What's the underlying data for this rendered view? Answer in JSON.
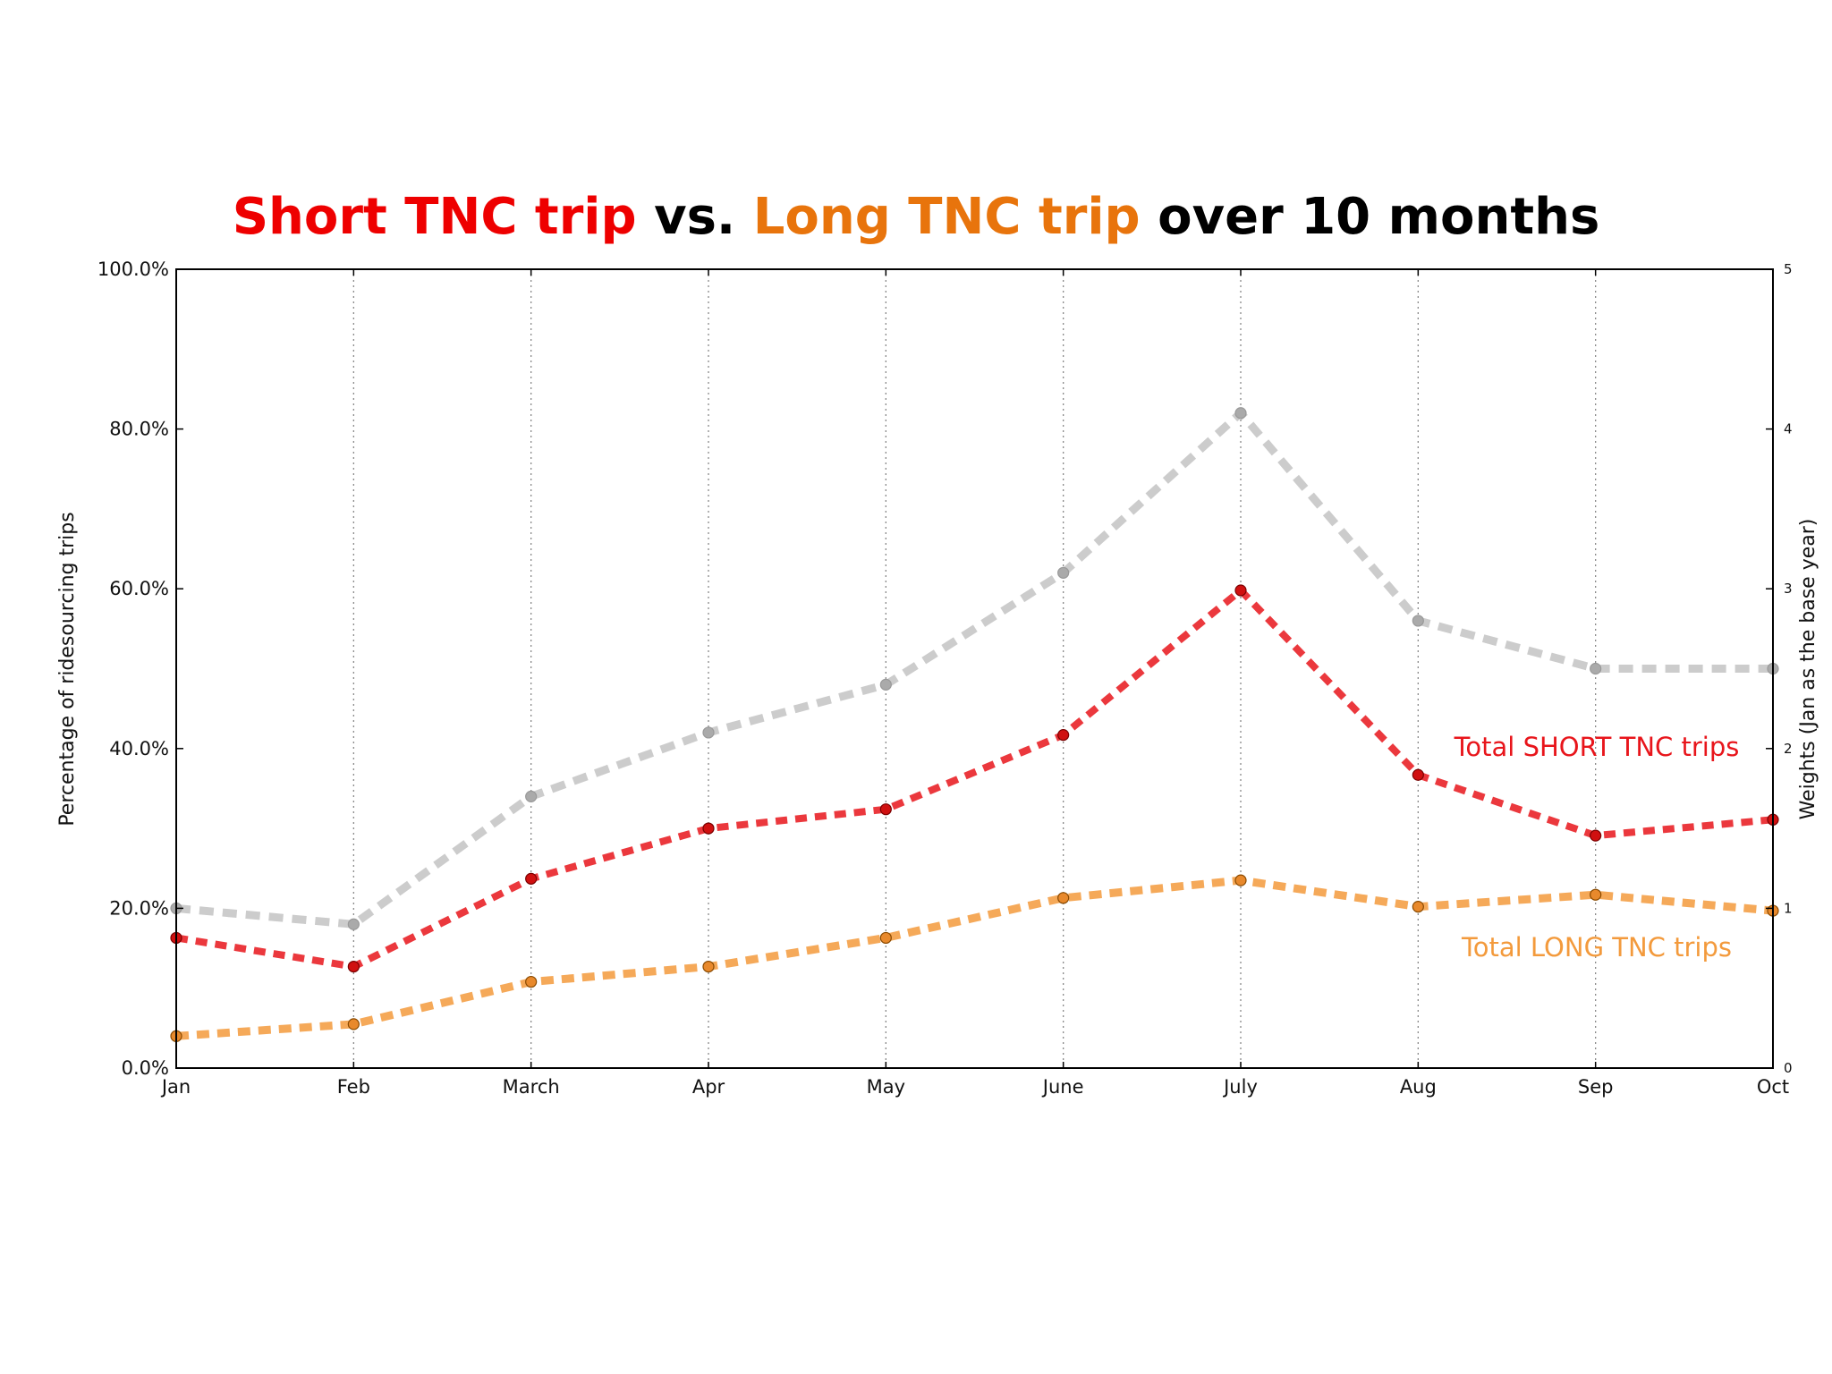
{
  "colors": {
    "short": "#e8151b",
    "long": "#f39a3c",
    "total": "#cccccc",
    "title_short": "#ee0000",
    "title_long": "#e8740c"
  },
  "chart_data": {
    "type": "line",
    "title": {
      "part1": "Short TNC trip",
      "part2": " vs. ",
      "part3": "Long TNC trip",
      "part4": " over 10 months"
    },
    "x": [
      "Jan",
      "Feb",
      "March",
      "Apr",
      "May",
      "June",
      "July",
      "Aug",
      "Sep",
      "Oct"
    ],
    "ylabel": "Percentage of ridesourcing trips",
    "y2label": "Weights (Jan as the base year)",
    "ylim": [
      0,
      100
    ],
    "y2lim": [
      0,
      5
    ],
    "yticks": [
      "0.0%",
      "20.0%",
      "40.0%",
      "60.0%",
      "80.0%",
      "100.0%"
    ],
    "y2ticks": [
      "0",
      "1",
      "2",
      "3",
      "4",
      "5"
    ],
    "grid": "vertical-dotted",
    "series": [
      {
        "name": "",
        "axis": "right",
        "color_key": "total",
        "values": [
          1.0,
          0.9,
          1.7,
          2.1,
          2.4,
          3.1,
          4.1,
          2.8,
          2.5,
          2.5
        ]
      },
      {
        "name": "Total SHORT TNC trips",
        "axis": "left",
        "color_key": "short",
        "values": [
          16.3,
          12.7,
          23.7,
          30.0,
          32.4,
          41.7,
          59.8,
          36.7,
          29.1,
          31.1
        ]
      },
      {
        "name": "Total LONG TNC trips",
        "axis": "left",
        "color_key": "long",
        "values": [
          4.0,
          5.5,
          10.8,
          12.7,
          16.3,
          21.3,
          23.5,
          20.2,
          21.7,
          19.7
        ]
      }
    ]
  }
}
